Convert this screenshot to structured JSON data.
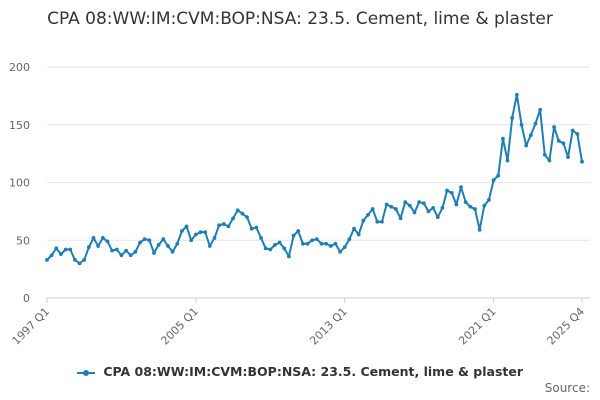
{
  "chart_data": {
    "type": "line",
    "title": "CPA 08:WW:IM:CVM:BOP:NSA: 23.5. Cement, lime & plaster",
    "xlabel": "",
    "ylabel": "",
    "ylim": [
      0,
      200
    ],
    "yticks": [
      0,
      50,
      100,
      150,
      200
    ],
    "xtick_labels": [
      "1997 Q1",
      "2005 Q1",
      "2013 Q1",
      "2021 Q1",
      "2025 Q4"
    ],
    "grid": true,
    "legend_position": "bottom",
    "series": [
      {
        "name": "CPA 08:WW:IM:CVM:BOP:NSA: 23.5. Cement, lime & plaster",
        "color": "#1f7fb4",
        "values": [
          33,
          37,
          43,
          38,
          42,
          42,
          33,
          30,
          33,
          44,
          52,
          45,
          52,
          49,
          41,
          42,
          37,
          41,
          37,
          40,
          48,
          51,
          50,
          39,
          46,
          51,
          45,
          40,
          47,
          58,
          62,
          50,
          55,
          57,
          57,
          45,
          52,
          63,
          64,
          62,
          69,
          76,
          73,
          70,
          60,
          61,
          52,
          43,
          42,
          46,
          48,
          43,
          36,
          54,
          58,
          47,
          47,
          50,
          51,
          47,
          47,
          45,
          47,
          40,
          44,
          51,
          60,
          55,
          67,
          72,
          77,
          66,
          66,
          81,
          79,
          77,
          69,
          83,
          80,
          74,
          83,
          82,
          75,
          78,
          70,
          78,
          93,
          91,
          81,
          96,
          83,
          79,
          77,
          59,
          80,
          85,
          102,
          106,
          138,
          119,
          156,
          176,
          150,
          132,
          141,
          151,
          163,
          124,
          119,
          148,
          136,
          134,
          122,
          145,
          142,
          118
        ]
      }
    ]
  },
  "source": {
    "label": "Source:"
  }
}
